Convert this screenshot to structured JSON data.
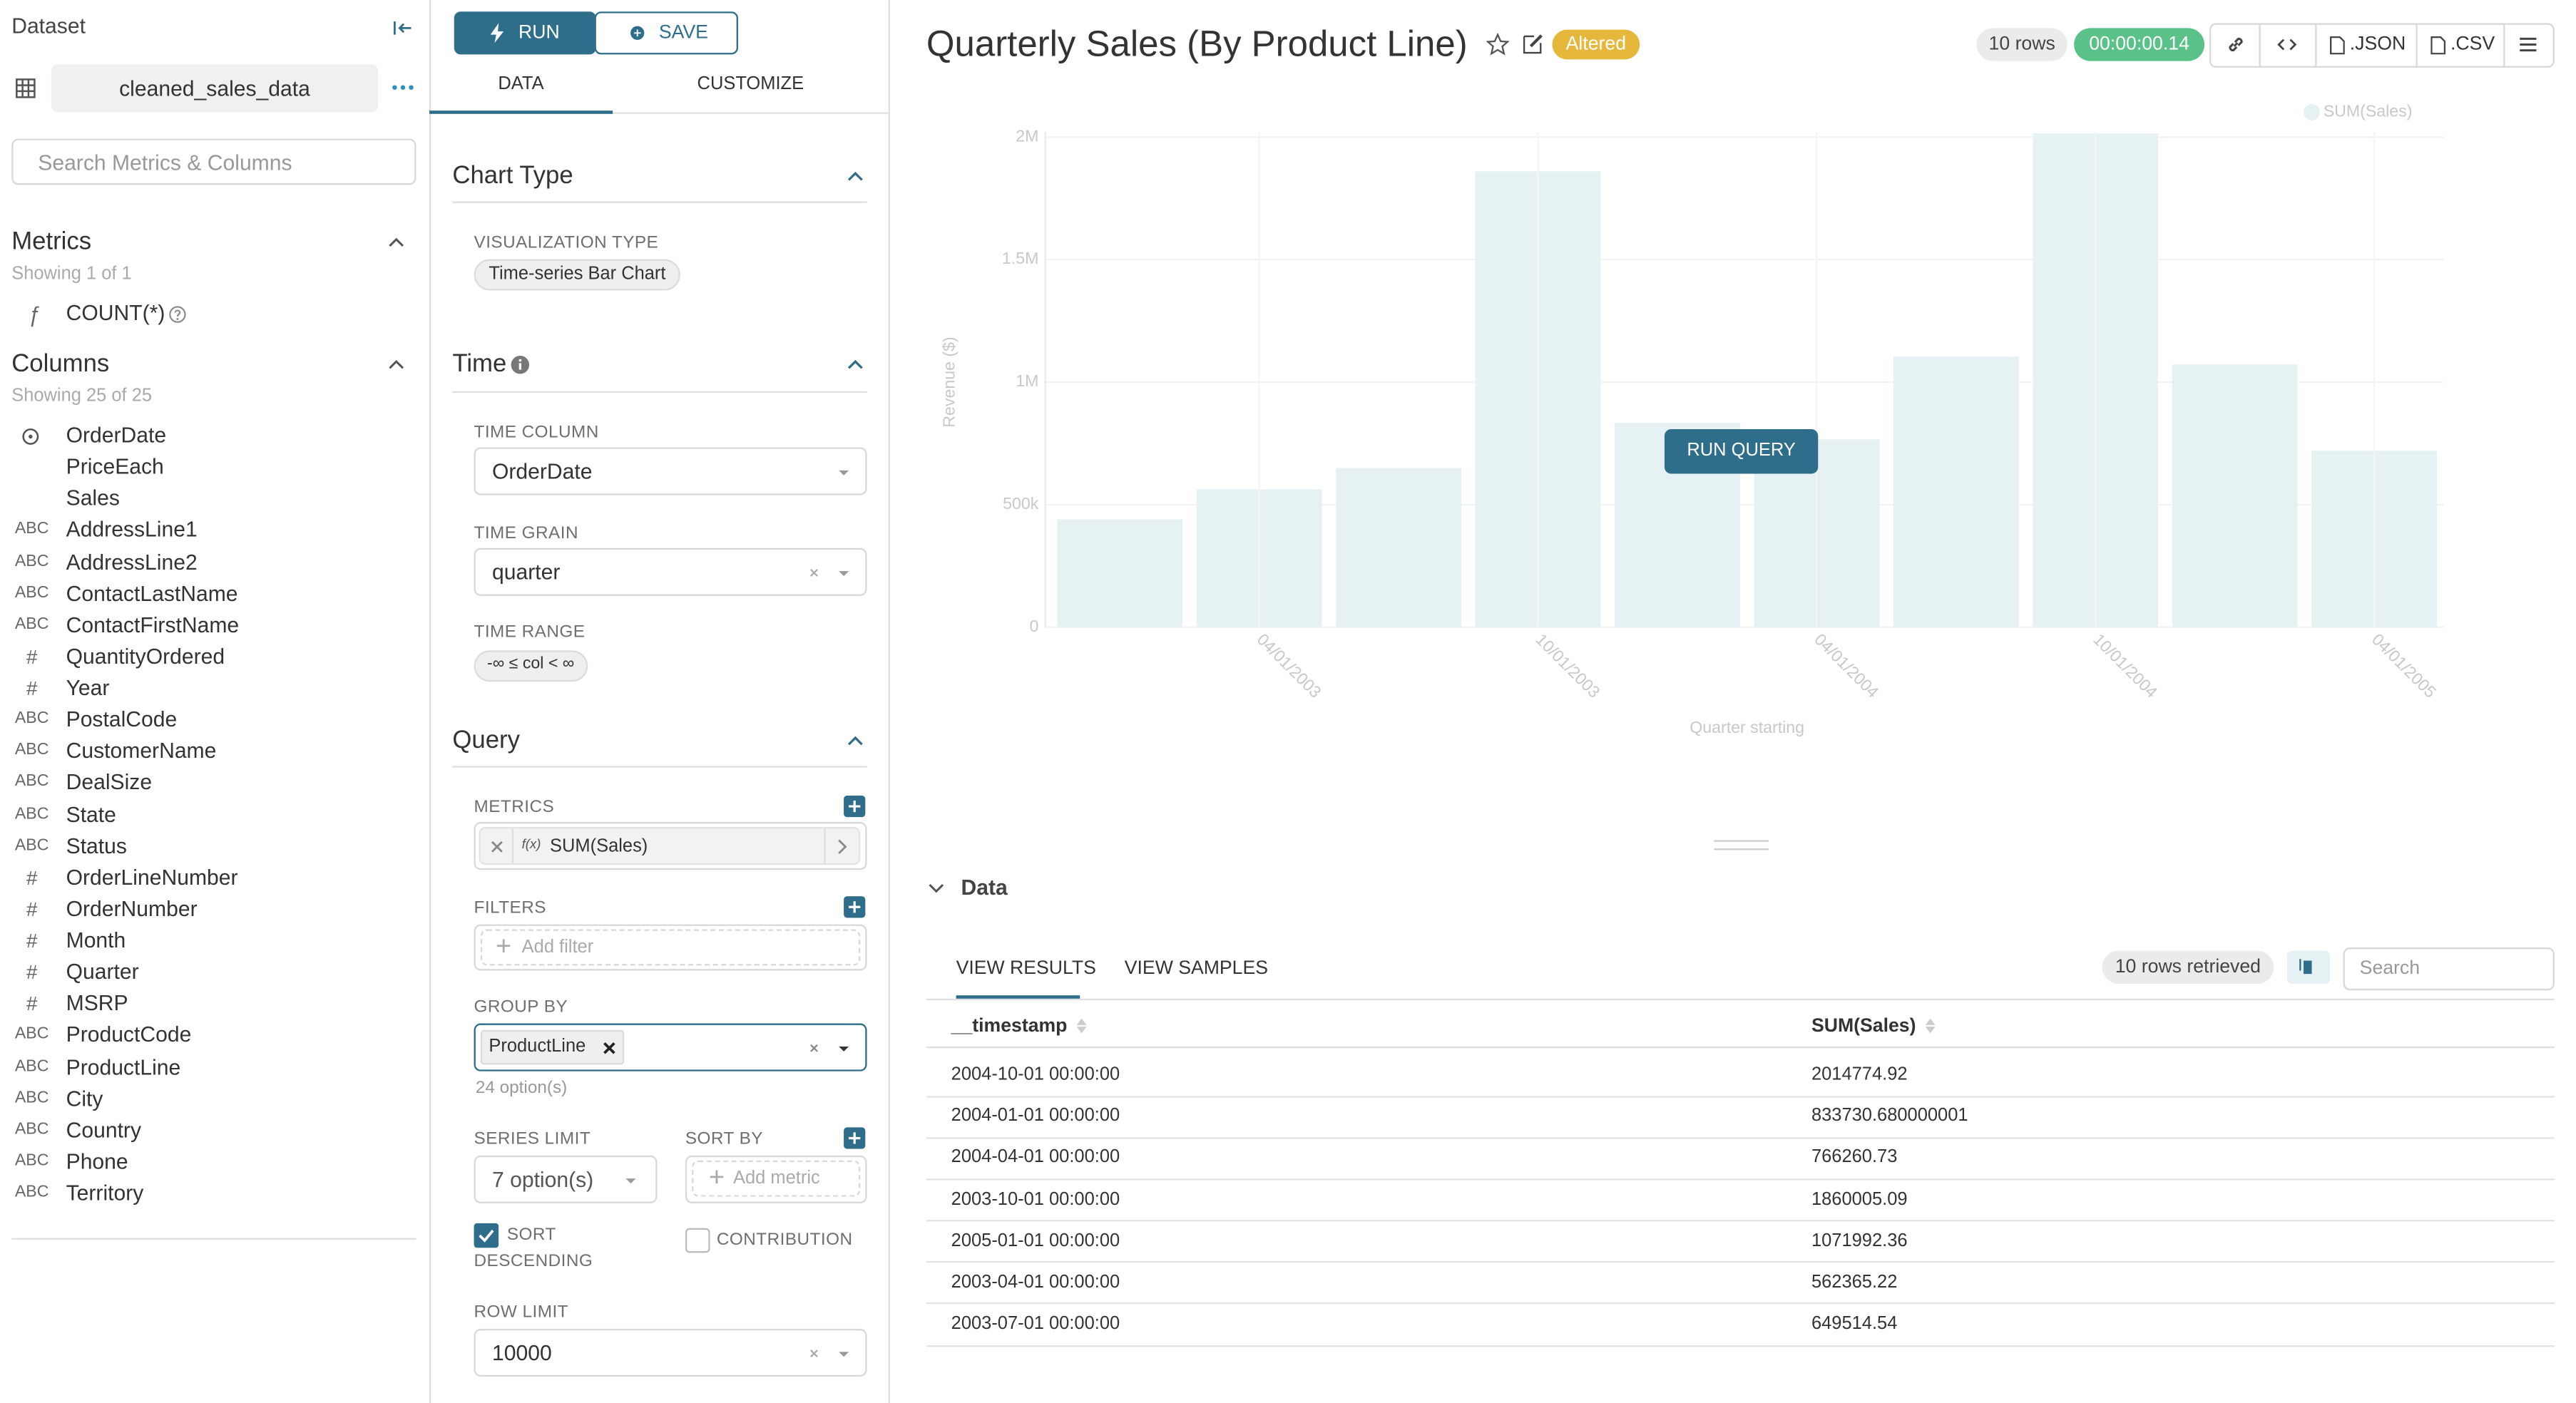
{
  "dataset_panel": {
    "title": "Dataset",
    "dataset_name": "cleaned_sales_data",
    "search_placeholder": "Search Metrics & Columns",
    "metrics": {
      "title": "Metrics",
      "count_text": "Showing 1 of 1",
      "items": [
        {
          "icon": "ƒ",
          "name": "COUNT(*)"
        }
      ]
    },
    "columns": {
      "title": "Columns",
      "count_text": "Showing 25 of 25",
      "items": [
        {
          "name": "OrderDate"
        },
        {
          "name": "PriceEach"
        },
        {
          "name": "Sales"
        },
        {
          "type": "ABC",
          "name": "AddressLine1"
        },
        {
          "type": "ABC",
          "name": "AddressLine2"
        },
        {
          "type": "ABC",
          "name": "ContactLastName"
        },
        {
          "type": "ABC",
          "name": "ContactFirstName"
        },
        {
          "type": "#",
          "name": "QuantityOrdered"
        },
        {
          "type": "#",
          "name": "Year"
        },
        {
          "type": "ABC",
          "name": "PostalCode"
        },
        {
          "type": "ABC",
          "name": "CustomerName"
        },
        {
          "type": "ABC",
          "name": "DealSize"
        },
        {
          "type": "ABC",
          "name": "State"
        },
        {
          "type": "ABC",
          "name": "Status"
        },
        {
          "type": "#",
          "name": "OrderLineNumber"
        },
        {
          "type": "#",
          "name": "OrderNumber"
        },
        {
          "type": "#",
          "name": "Month"
        },
        {
          "type": "#",
          "name": "Quarter"
        },
        {
          "type": "#",
          "name": "MSRP"
        },
        {
          "type": "ABC",
          "name": "ProductCode"
        },
        {
          "type": "ABC",
          "name": "ProductLine"
        },
        {
          "type": "ABC",
          "name": "City"
        },
        {
          "type": "ABC",
          "name": "Country"
        },
        {
          "type": "ABC",
          "name": "Phone"
        },
        {
          "type": "ABC",
          "name": "Territory"
        }
      ]
    }
  },
  "controls": {
    "run": "RUN",
    "save": "SAVE",
    "tabs": [
      "DATA",
      "CUSTOMIZE"
    ],
    "chart_type": {
      "title": "Chart Type",
      "label": "VISUALIZATION TYPE",
      "value": "Time-series Bar Chart"
    },
    "time": {
      "title": "Time",
      "column_label": "TIME COLUMN",
      "column": "OrderDate",
      "grain_label": "TIME GRAIN",
      "grain": "quarter",
      "range_label": "TIME RANGE",
      "range": "-∞ ≤ col < ∞"
    },
    "query": {
      "title": "Query",
      "metrics_label": "METRICS",
      "metric_icon": "f(x)",
      "metric": "SUM(Sales)",
      "filters_label": "FILTERS",
      "filters_placeholder": "Add filter",
      "group_by_label": "GROUP BY",
      "group_by": "ProductLine",
      "group_by_options": "24 option(s)",
      "series_limit_label": "SERIES LIMIT",
      "series_limit": "7 option(s)",
      "sort_by_label": "SORT BY",
      "sort_by_placeholder": "Add metric",
      "sort_descending_label": "SORT DESCENDING",
      "contribution_label": "CONTRIBUTION",
      "row_limit_label": "ROW LIMIT",
      "row_limit": "10000"
    }
  },
  "header": {
    "title": "Quarterly Sales (By Product Line)",
    "altered": "Altered",
    "rows": "10 rows",
    "duration": "00:00:00.14",
    "json": ".JSON",
    "csv": ".CSV"
  },
  "run_query": "RUN QUERY",
  "chart_data": {
    "type": "bar",
    "y_label": "Revenue ($)",
    "x_label": "Quarter starting",
    "categories": [
      null,
      "04/01/2003",
      null,
      "10/01/2003",
      null,
      "04/01/2004",
      null,
      "10/01/2004",
      null,
      "04/01/2005"
    ],
    "series": [
      {
        "name": "SUM(Sales)",
        "color": "#e6f1f4",
        "values": [
          440000,
          562365.22,
          649514.54,
          1860005.09,
          833730.68,
          766260.73,
          1104000,
          2014774.92,
          1071992.36,
          720000
        ]
      }
    ],
    "ylim": [
      0,
      2000000
    ],
    "yticks": [
      0,
      {
        "value": 500000,
        "label": "500k"
      },
      {
        "value": 1000000,
        "label": "1M"
      },
      {
        "value": 1500000,
        "label": "1.5M"
      },
      {
        "value": 2000000,
        "label": "2M"
      }
    ],
    "grid": true
  },
  "data_pane": {
    "title": "Data",
    "tabs": [
      "VIEW RESULTS",
      "VIEW SAMPLES"
    ],
    "retrieved": "10 rows retrieved",
    "search_placeholder": "Search",
    "table": {
      "columns": [
        "__timestamp",
        "SUM(Sales)"
      ],
      "rows": [
        [
          "2004-10-01 00:00:00",
          "2014774.92"
        ],
        [
          "2004-01-01 00:00:00",
          "833730.680000001"
        ],
        [
          "2004-04-01 00:00:00",
          "766260.73"
        ],
        [
          "2003-10-01 00:00:00",
          "1860005.09"
        ],
        [
          "2005-01-01 00:00:00",
          "1071992.36"
        ],
        [
          "2003-04-01 00:00:00",
          "562365.22"
        ],
        [
          "2003-07-01 00:00:00",
          "649514.54"
        ]
      ]
    }
  }
}
